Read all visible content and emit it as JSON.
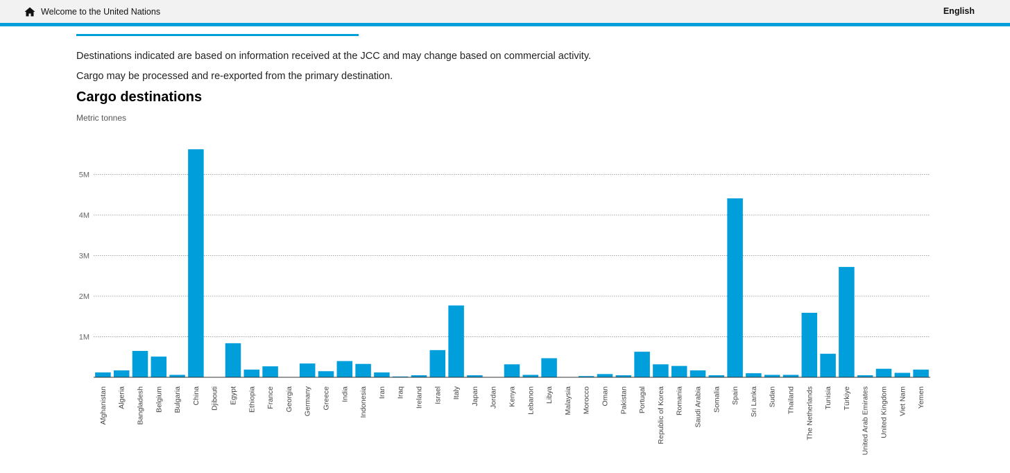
{
  "header": {
    "home_label": "Welcome to the United Nations",
    "language_label": "English",
    "home_icon": "home-icon"
  },
  "notes": [
    "Destinations indicated are based on information received at the JCC and may change based on commercial activity.",
    "Cargo may be processed and re-exported from the primary destination."
  ],
  "colors": {
    "accent": "#009edb",
    "bar": "#009edb"
  },
  "chart_data": {
    "type": "bar",
    "title": "Cargo destinations",
    "subtitle": "Metric tonnes",
    "ylim": [
      0,
      5600000
    ],
    "yticks": [
      1000000,
      2000000,
      3000000,
      4000000,
      5000000
    ],
    "ytick_labels": [
      "1M",
      "2M",
      "3M",
      "4M",
      "5M"
    ],
    "grid": true,
    "categories": [
      "Afghanistan",
      "Algeria",
      "Bangladesh",
      "Belgium",
      "Bulgaria",
      "China",
      "Djibouti",
      "Egypt",
      "Ethiopia",
      "France",
      "Georgia",
      "Germany",
      "Greece",
      "India",
      "Indonesia",
      "Iran",
      "Iraq",
      "Ireland",
      "Israel",
      "Italy",
      "Japan",
      "Jordan",
      "Kenya",
      "Lebanon",
      "Libya",
      "Malaysia",
      "Morocco",
      "Oman",
      "Pakistan",
      "Portugal",
      "Republic of Korea",
      "Romania",
      "Saudi Arabia",
      "Somalia",
      "Spain",
      "Sri Lanka",
      "Sudan",
      "Thailand",
      "The Netherlands",
      "Tunisia",
      "Türkiye",
      "United Arab Emirates",
      "United Kingdom",
      "Viet Nam",
      "Yemen"
    ],
    "values": [
      120000,
      170000,
      650000,
      510000,
      60000,
      5620000,
      0,
      840000,
      190000,
      270000,
      0,
      340000,
      150000,
      400000,
      330000,
      120000,
      20000,
      50000,
      670000,
      1770000,
      50000,
      0,
      320000,
      60000,
      470000,
      0,
      30000,
      80000,
      50000,
      630000,
      320000,
      280000,
      170000,
      50000,
      4410000,
      100000,
      60000,
      60000,
      1590000,
      580000,
      2720000,
      50000,
      210000,
      110000,
      190000
    ]
  }
}
